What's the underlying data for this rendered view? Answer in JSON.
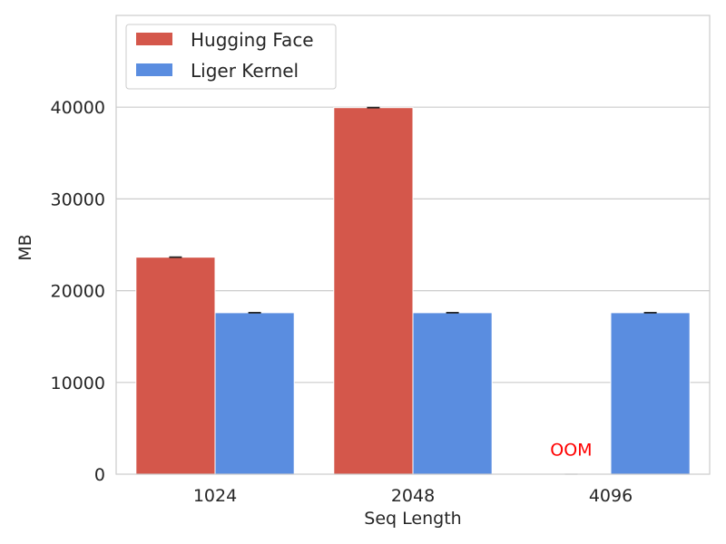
{
  "chart_data": {
    "type": "bar",
    "categories": [
      "1024",
      "2048",
      "4096"
    ],
    "series": [
      {
        "name": "Hugging Face",
        "color": "#d4574b",
        "values": [
          23650,
          39950,
          0
        ]
      },
      {
        "name": "Liger Kernel",
        "color": "#5a8de0",
        "values": [
          17600,
          17600,
          17600
        ]
      }
    ],
    "error_bars": true,
    "xlabel": "Seq Length",
    "ylabel": "MB",
    "ylim": [
      0,
      50000
    ],
    "yticks": [
      "0",
      "10000",
      "20000",
      "30000",
      "40000"
    ],
    "grid": "horizontal",
    "legend_position": "top-left",
    "annotations": [
      {
        "text": "OOM",
        "category": "4096",
        "y": 2700,
        "color": "#ff0000"
      }
    ]
  }
}
